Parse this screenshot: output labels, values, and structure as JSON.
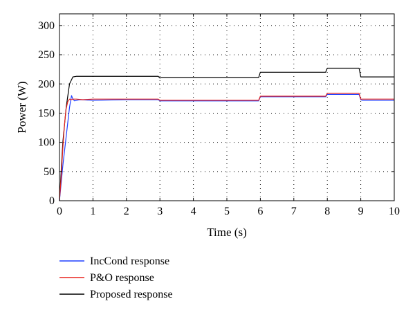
{
  "chart_data": {
    "type": "line",
    "title": "",
    "xlabel": "Time (s)",
    "ylabel": "Power (W)",
    "xlim": [
      0,
      10
    ],
    "ylim": [
      0,
      320
    ],
    "xticks": [
      0,
      1,
      2,
      3,
      4,
      5,
      6,
      7,
      8,
      9,
      10
    ],
    "yticks": [
      0,
      50,
      100,
      150,
      200,
      250,
      300
    ],
    "grid": true,
    "legend_position": "below-left",
    "series": [
      {
        "name": "IncCond response",
        "color": "#1f3fff",
        "x": [
          0,
          0.05,
          0.1,
          0.2,
          0.3,
          0.36,
          0.4,
          0.45,
          0.6,
          1.0,
          2.0,
          2.95,
          3.0,
          3.05,
          4.0,
          5.0,
          5.95,
          6.0,
          6.05,
          7.0,
          7.95,
          8.0,
          8.05,
          8.95,
          9.0,
          9.05,
          10.0
        ],
        "y": [
          0,
          30,
          60,
          110,
          160,
          180,
          174,
          171,
          173,
          172,
          173,
          173,
          171,
          171,
          171,
          171,
          171,
          178,
          178,
          178,
          178,
          182,
          182,
          182,
          173,
          172,
          172
        ]
      },
      {
        "name": "P&O response",
        "color": "#e8231e",
        "x": [
          0,
          0.05,
          0.1,
          0.15,
          0.2,
          0.25,
          0.3,
          0.35,
          0.4,
          0.5,
          0.7,
          1.0,
          2.0,
          2.95,
          3.0,
          3.05,
          4.0,
          5.0,
          5.95,
          6.0,
          6.05,
          7.0,
          7.95,
          8.0,
          8.05,
          8.95,
          9.0,
          9.05,
          10.0
        ],
        "y": [
          0,
          40,
          90,
          130,
          158,
          170,
          174,
          173,
          174,
          174,
          173,
          174,
          174,
          174,
          172,
          172,
          172,
          172,
          172,
          179,
          179,
          179,
          179,
          184,
          184,
          184,
          174,
          174,
          174
        ]
      },
      {
        "name": "Proposed response",
        "color": "#000000",
        "x": [
          0,
          0.05,
          0.1,
          0.2,
          0.3,
          0.4,
          0.5,
          0.7,
          1.0,
          2.0,
          2.95,
          3.0,
          3.05,
          4.0,
          5.0,
          5.95,
          6.0,
          6.05,
          7.0,
          7.95,
          8.0,
          8.05,
          8.95,
          9.0,
          9.05,
          10.0
        ],
        "y": [
          0,
          50,
          100,
          160,
          200,
          212,
          213,
          213,
          213,
          213,
          213,
          210,
          211,
          211,
          211,
          211,
          220,
          220,
          220,
          220,
          227,
          227,
          227,
          212,
          212,
          212
        ]
      }
    ]
  }
}
